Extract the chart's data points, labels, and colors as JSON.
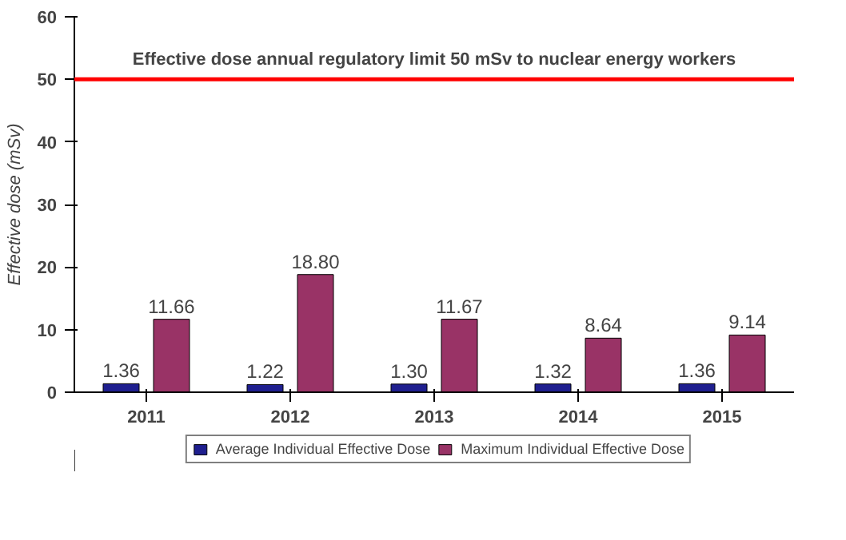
{
  "chart_data": {
    "type": "bar",
    "ylabel": "Effective dose (mSv)",
    "categories": [
      "2011",
      "2012",
      "2013",
      "2014",
      "2015"
    ],
    "series": [
      {
        "name": "Average Individual Effective Dose",
        "color": "#1f1f8f",
        "values": [
          1.36,
          1.22,
          1.3,
          1.32,
          1.36
        ],
        "value_labels": [
          "1.36",
          "1.22",
          "1.30",
          "1.32",
          "1.36"
        ]
      },
      {
        "name": "Maximum Individual Effective Dose",
        "color": "#993366",
        "values": [
          11.66,
          18.8,
          11.67,
          8.64,
          9.14
        ],
        "value_labels": [
          "11.66",
          "18.80",
          "11.67",
          "8.64",
          "9.14"
        ]
      }
    ],
    "ylim": [
      0,
      60
    ],
    "yticks": [
      0,
      10,
      20,
      30,
      40,
      50,
      60
    ],
    "grid": false,
    "legend": "bottom",
    "ref_lines": [
      {
        "axis": "y",
        "value": 50,
        "label": "Effective dose annual regulatory limit 50 mSv to nuclear energy workers",
        "color": "#ff0000"
      }
    ]
  }
}
